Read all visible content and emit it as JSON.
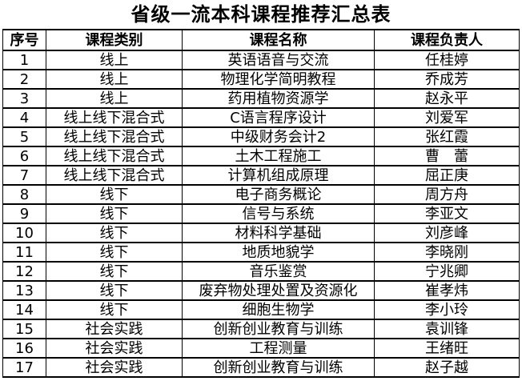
{
  "title": "省级一流本科课程推荐汇总表",
  "table": {
    "headers": [
      "序号",
      "课程类别",
      "课程名称",
      "课程负责人"
    ],
    "rows": [
      [
        "1",
        "线上",
        "英语语音与交流",
        "任桂婷"
      ],
      [
        "2",
        "线上",
        "物理化学简明教程",
        "乔成芳"
      ],
      [
        "3",
        "线上",
        "药用植物资源学",
        "赵永平"
      ],
      [
        "4",
        "线上线下混合式",
        "C语言程序设计",
        "刘爱军"
      ],
      [
        "5",
        "线上线下混合式",
        "中级财务会计2",
        "张红霞"
      ],
      [
        "6",
        "线上线下混合式",
        "土木工程施工",
        "曹　蕾"
      ],
      [
        "7",
        "线上线下混合式",
        "计算机组成原理",
        "屈正庚"
      ],
      [
        "8",
        "线下",
        "电子商务概论",
        "周方舟"
      ],
      [
        "9",
        "线下",
        "信号与系统",
        "李亚文"
      ],
      [
        "10",
        "线下",
        "材料科学基础",
        "刘彦峰"
      ],
      [
        "11",
        "线下",
        "地质地貌学",
        "李晓刚"
      ],
      [
        "12",
        "线下",
        "音乐鉴赏",
        "宁兆卿"
      ],
      [
        "13",
        "线下",
        "废弃物处理处置及资源化",
        "崔孝炜"
      ],
      [
        "14",
        "线下",
        "细胞生物学",
        "李小玲"
      ],
      [
        "15",
        "社会实践",
        "创新创业教育与训练",
        "袁训锋"
      ],
      [
        "16",
        "社会实践",
        "工程测量",
        "王绪旺"
      ],
      [
        "17",
        "社会实践",
        "创新创业教育与训练",
        "赵子越"
      ]
    ],
    "column_names": [
      "row-number",
      "course-category",
      "course-name",
      "course-leader"
    ]
  },
  "colors": {
    "text": "#000000",
    "border": "#000000",
    "background": "#ffffff"
  }
}
